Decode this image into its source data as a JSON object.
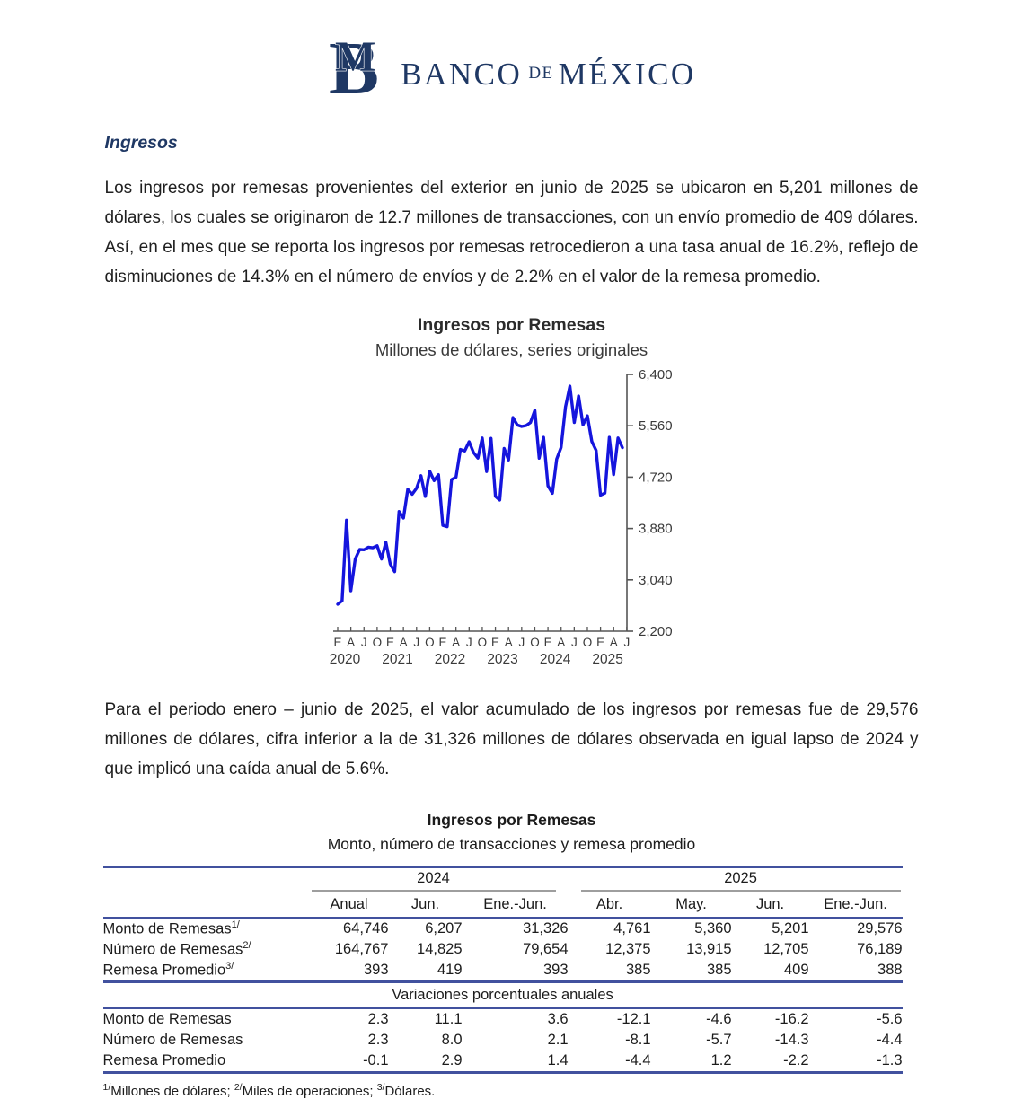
{
  "header": {
    "brand_banco": "BANCO",
    "brand_de": "DE",
    "brand_mexico": "MÉXICO"
  },
  "section_heading": "Ingresos",
  "paragraph1": "Los ingresos por remesas provenientes del exterior en junio de 2025 se ubicaron en 5,201 millones de dólares, los cuales se originaron de 12.7 millones de transacciones, con un envío promedio de 409 dólares. Así, en el mes que se reporta los ingresos por remesas retrocedieron a una tasa anual de 16.2%, reflejo de disminuciones de 14.3% en el número de envíos y de 2.2% en el valor de la remesa promedio.",
  "paragraph2": "Para el periodo enero – junio de 2025, el valor acumulado de los ingresos por remesas fue de 29,576 millones de dólares, cifra inferior a la de 31,326 millones de dólares observada en igual lapso de 2024 y que implicó una caída anual de 5.6%.",
  "chart_data": {
    "type": "line",
    "title": "Ingresos por Remesas",
    "subtitle": "Millones de dólares, series originales",
    "x_start": "2020-01",
    "x_end": "2025-06",
    "x_tick_labels": [
      "E",
      "A",
      "J",
      "O",
      "E",
      "A",
      "J",
      "O",
      "E",
      "A",
      "J",
      "O",
      "E",
      "A",
      "J",
      "O",
      "E",
      "A",
      "J",
      "O",
      "E",
      "A",
      "J"
    ],
    "year_labels": [
      "2020",
      "2021",
      "2022",
      "2023",
      "2024",
      "2025"
    ],
    "y_ticks": [
      2200,
      3040,
      3880,
      4720,
      5560,
      6400
    ],
    "y_tick_labels": [
      "2,200",
      "3,040",
      "3,880",
      "4,720",
      "5,560",
      "6,400"
    ],
    "ylim": [
      2200,
      6400
    ],
    "grid": false,
    "legend": "none",
    "line_color": "#1515dd",
    "axis_color": "#555555",
    "series": [
      {
        "name": "Ingresos por remesas (millones de dólares)",
        "values": [
          2642,
          2700,
          4016,
          2861,
          3379,
          3537,
          3532,
          3574,
          3564,
          3598,
          3380,
          3657,
          3298,
          3174,
          4157,
          4051,
          4521,
          4440,
          4540,
          4744,
          4404,
          4819,
          4663,
          4760,
          3931,
          3909,
          4681,
          4718,
          5172,
          5148,
          5298,
          5122,
          5031,
          5360,
          4811,
          5355,
          4406,
          4346,
          5190,
          5000,
          5693,
          5572,
          5548,
          5563,
          5613,
          5813,
          5030,
          5370,
          4577,
          4455,
          5015,
          5205,
          5867,
          6207,
          5613,
          6047,
          5576,
          5722,
          5305,
          5157,
          4425,
          4459,
          5370,
          4761,
          5360,
          5201
        ]
      }
    ]
  },
  "table": {
    "title": "Ingresos por Remesas",
    "subtitle": "Monto, número de transacciones y remesa promedio",
    "group_2024": "2024",
    "group_2025": "2025",
    "column_headers": [
      "Anual",
      "Jun.",
      "Ene.-Jun.",
      "Abr.",
      "May.",
      "Jun.",
      "Ene.-Jun."
    ],
    "rows_levels": [
      {
        "label": "Monto de Remesas",
        "sup": "1/",
        "values": [
          "64,746",
          "6,207",
          "31,326",
          "4,761",
          "5,360",
          "5,201",
          "29,576"
        ]
      },
      {
        "label": "Número de Remesas",
        "sup": "2/",
        "values": [
          "164,767",
          "14,825",
          "79,654",
          "12,375",
          "13,915",
          "12,705",
          "76,189"
        ]
      },
      {
        "label": "Remesa Promedio",
        "sup": "3/",
        "values": [
          "393",
          "419",
          "393",
          "385",
          "385",
          "409",
          "388"
        ]
      }
    ],
    "section_divider": "Variaciones porcentuales anuales",
    "rows_variations": [
      {
        "label": "Monto de Remesas",
        "values": [
          "2.3",
          "11.1",
          "3.6",
          "-12.1",
          "-4.6",
          "-16.2",
          "-5.6"
        ]
      },
      {
        "label": "Número de Remesas",
        "values": [
          "2.3",
          "8.0",
          "2.1",
          "-8.1",
          "-5.7",
          "-14.3",
          "-4.4"
        ]
      },
      {
        "label": "Remesa Promedio",
        "values": [
          "-0.1",
          "2.9",
          "1.4",
          "-4.4",
          "1.2",
          "-2.2",
          "-1.3"
        ]
      }
    ],
    "footnote": {
      "sup1": "1/",
      "text1": "Millones de dólares; ",
      "sup2": "2/",
      "text2": "Miles de operaciones; ",
      "sup3": "3/",
      "text3": "Dólares."
    }
  }
}
